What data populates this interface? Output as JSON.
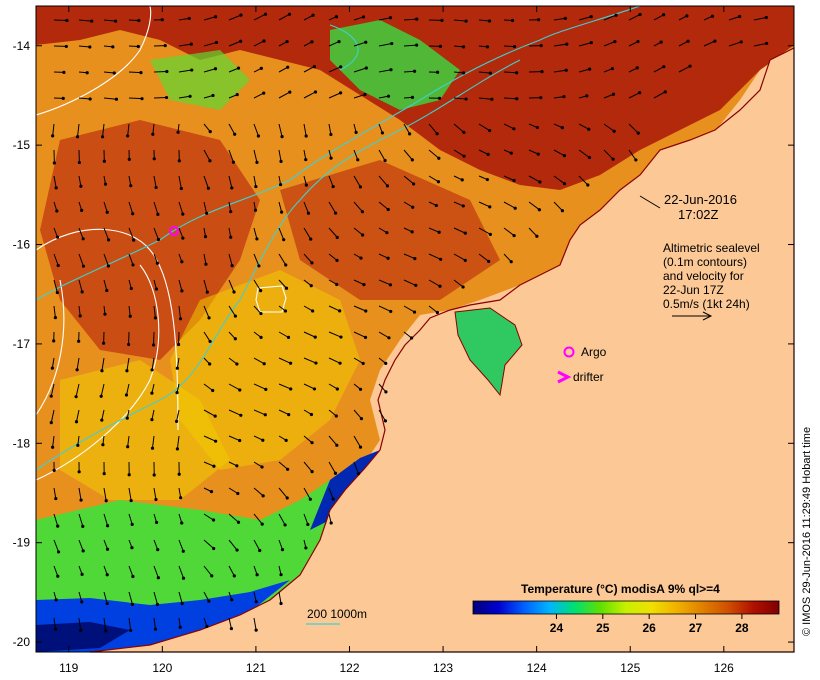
{
  "map": {
    "lon_range": [
      118.65,
      126.75
    ],
    "lat_range": [
      -20.1,
      -13.6
    ],
    "x_ticks": [
      "119",
      "120",
      "121",
      "122",
      "123",
      "124",
      "125",
      "126"
    ],
    "y_ticks": [
      "-14",
      "-15",
      "-16",
      "-17",
      "-18",
      "-19",
      "-20"
    ]
  },
  "annotation": {
    "date": "22-Jun-2016",
    "time": "17:02Z",
    "alt_line1": "Altimetric sealevel",
    "alt_line2": "(0.1m contours)",
    "alt_line3": "and velocity for",
    "alt_line4": "22-Jun 17Z",
    "alt_line5": "0.5m/s (1kt 24h)"
  },
  "legend": {
    "argo": "Argo",
    "drifter": "drifter",
    "isobath": "200  1000m"
  },
  "colorbar": {
    "title": "Temperature (°C) modisA 9% ql>=4",
    "ticks": [
      "24",
      "25",
      "26",
      "27",
      "28"
    ],
    "stops": [
      "#00007a",
      "#0000d0",
      "#0060ff",
      "#00b4ff",
      "#00e070",
      "#60e000",
      "#c8f000",
      "#f0e000",
      "#f0b000",
      "#e08000",
      "#d05000",
      "#b01000",
      "#800000"
    ]
  },
  "credit": "© IMOS 29-Jun-2016 11:29:49 Hobart time",
  "colors": {
    "land": "#fbc896",
    "contour": "#ffffff",
    "isobath": "#40d0d0",
    "argo": "#ff00ff",
    "arrow": "#000000"
  }
}
